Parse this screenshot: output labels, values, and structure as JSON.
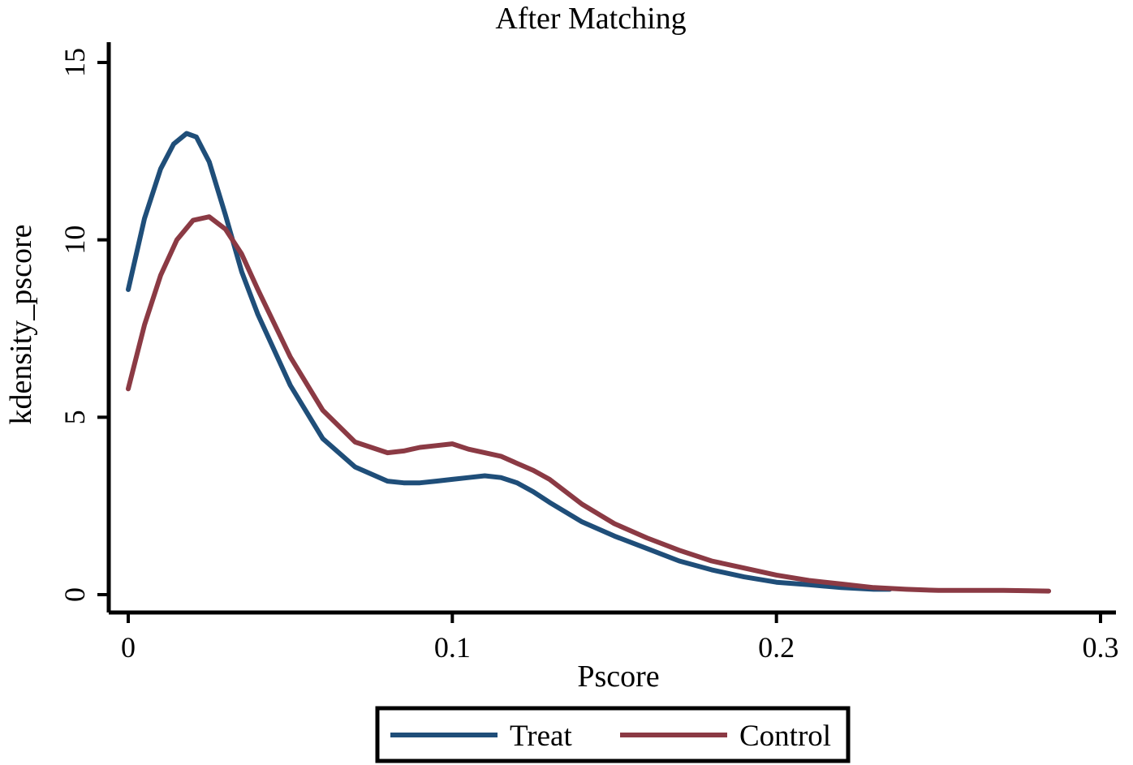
{
  "chart_data": {
    "type": "line",
    "title": "After Matching",
    "xlabel": "Pscore",
    "ylabel": "kdensity_pscore",
    "xlim": [
      -0.006,
      0.306
    ],
    "ylim": [
      -0.5,
      15.5
    ],
    "x_ticks": [
      0,
      0.1,
      0.2,
      0.3
    ],
    "x_tick_labels": [
      "0",
      "0.1",
      "0.2",
      "0.3"
    ],
    "y_ticks": [
      0,
      5,
      10,
      15
    ],
    "y_tick_labels": [
      "0",
      "5",
      "10",
      "15"
    ],
    "grid": false,
    "legend_position": "bottom",
    "series": [
      {
        "name": "Treat",
        "color": "#1f4e79",
        "x": [
          0,
          0.005,
          0.01,
          0.014,
          0.018,
          0.021,
          0.025,
          0.03,
          0.035,
          0.04,
          0.05,
          0.06,
          0.07,
          0.08,
          0.085,
          0.09,
          0.095,
          0.1,
          0.105,
          0.11,
          0.115,
          0.12,
          0.125,
          0.13,
          0.14,
          0.15,
          0.16,
          0.17,
          0.18,
          0.19,
          0.2,
          0.21,
          0.22,
          0.23,
          0.235
        ],
        "y": [
          8.6,
          10.6,
          12.0,
          12.7,
          13.0,
          12.9,
          12.2,
          10.7,
          9.1,
          7.9,
          5.9,
          4.4,
          3.6,
          3.2,
          3.15,
          3.15,
          3.2,
          3.25,
          3.3,
          3.35,
          3.3,
          3.15,
          2.9,
          2.6,
          2.05,
          1.65,
          1.3,
          0.95,
          0.7,
          0.5,
          0.35,
          0.28,
          0.2,
          0.15,
          0.15
        ]
      },
      {
        "name": "Control",
        "color": "#8b3a44",
        "x": [
          0,
          0.005,
          0.01,
          0.015,
          0.02,
          0.025,
          0.03,
          0.035,
          0.04,
          0.05,
          0.06,
          0.07,
          0.08,
          0.085,
          0.09,
          0.095,
          0.1,
          0.105,
          0.11,
          0.115,
          0.12,
          0.125,
          0.13,
          0.14,
          0.15,
          0.16,
          0.17,
          0.18,
          0.19,
          0.2,
          0.21,
          0.22,
          0.23,
          0.24,
          0.25,
          0.26,
          0.27,
          0.284
        ],
        "y": [
          5.8,
          7.6,
          9.0,
          10.0,
          10.55,
          10.65,
          10.3,
          9.6,
          8.6,
          6.7,
          5.2,
          4.3,
          4.0,
          4.05,
          4.15,
          4.2,
          4.25,
          4.1,
          4.0,
          3.9,
          3.7,
          3.5,
          3.25,
          2.55,
          2.0,
          1.6,
          1.25,
          0.95,
          0.75,
          0.55,
          0.4,
          0.3,
          0.2,
          0.15,
          0.12,
          0.12,
          0.12,
          0.1
        ]
      }
    ]
  }
}
